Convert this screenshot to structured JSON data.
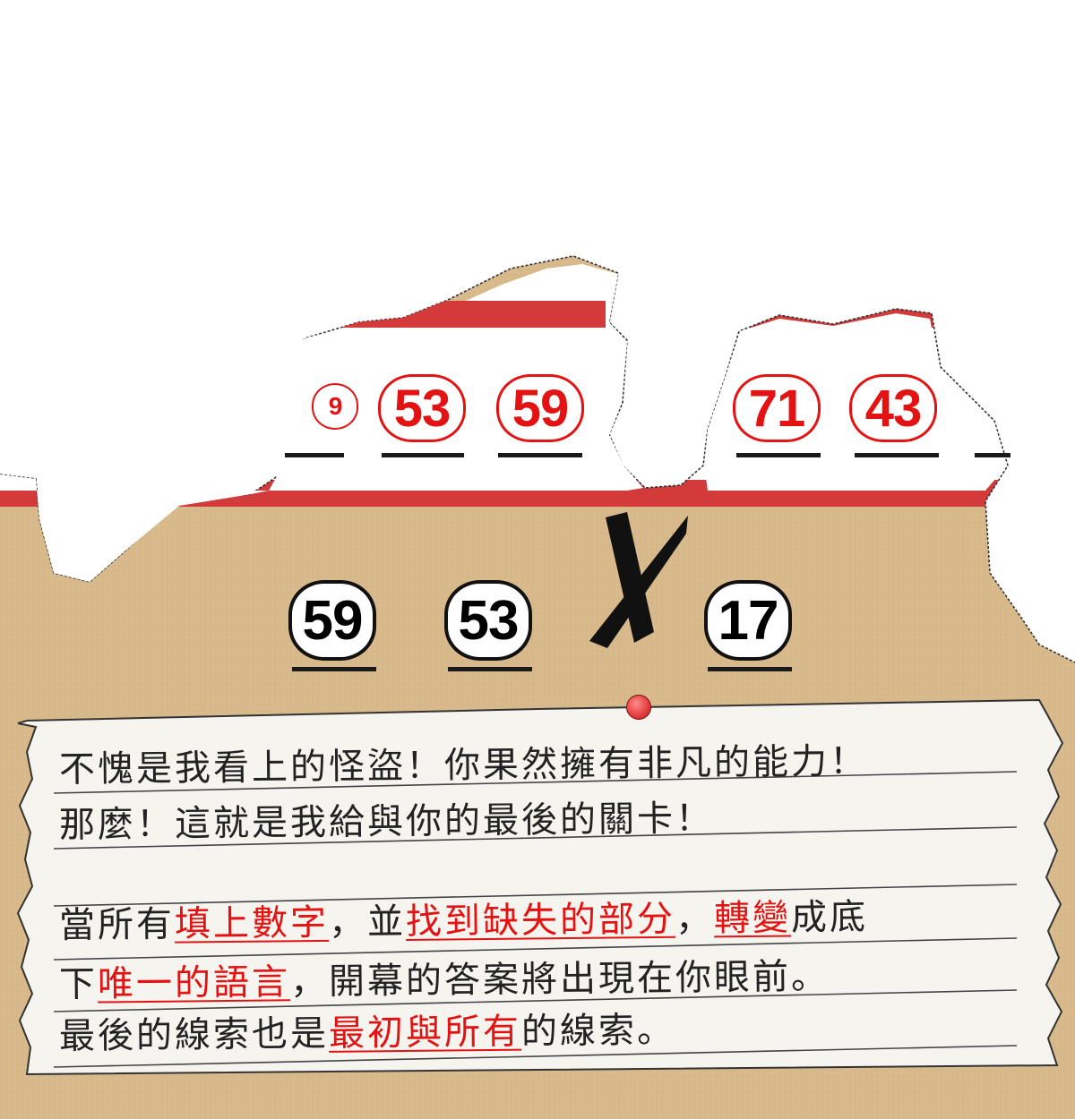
{
  "puzzle": {
    "top_row": [
      {
        "label": "9",
        "partial": true
      },
      {
        "label": "53"
      },
      {
        "label": "59"
      },
      {
        "label": "71"
      },
      {
        "label": "43"
      }
    ],
    "bottom_row": [
      {
        "label": "59"
      },
      {
        "label": "53"
      },
      {
        "label": "17"
      }
    ],
    "cross_icon": "x-mark-icon",
    "colors": {
      "paper": "#d9b98a",
      "stripe": "#d33a3a",
      "accent": "#e31313",
      "ink": "#111111"
    }
  },
  "note": {
    "line1": "不愧是我看上的怪盜！你果然擁有非凡的能力！",
    "line2": "那麼！這就是我給與你的最後的關卡！",
    "line3": {
      "a": "當所有",
      "b": "填上數字",
      "c": "，並",
      "d": "找到缺失的部分",
      "e": "，",
      "f": "轉變",
      "g": "成底"
    },
    "line4": {
      "a": "下",
      "b": "唯一的語言",
      "c": "，開幕的答案將出現在你眼前。"
    },
    "line5": {
      "a": "最後的線索也是",
      "b": "最初與所有",
      "c": "的線索。"
    }
  }
}
